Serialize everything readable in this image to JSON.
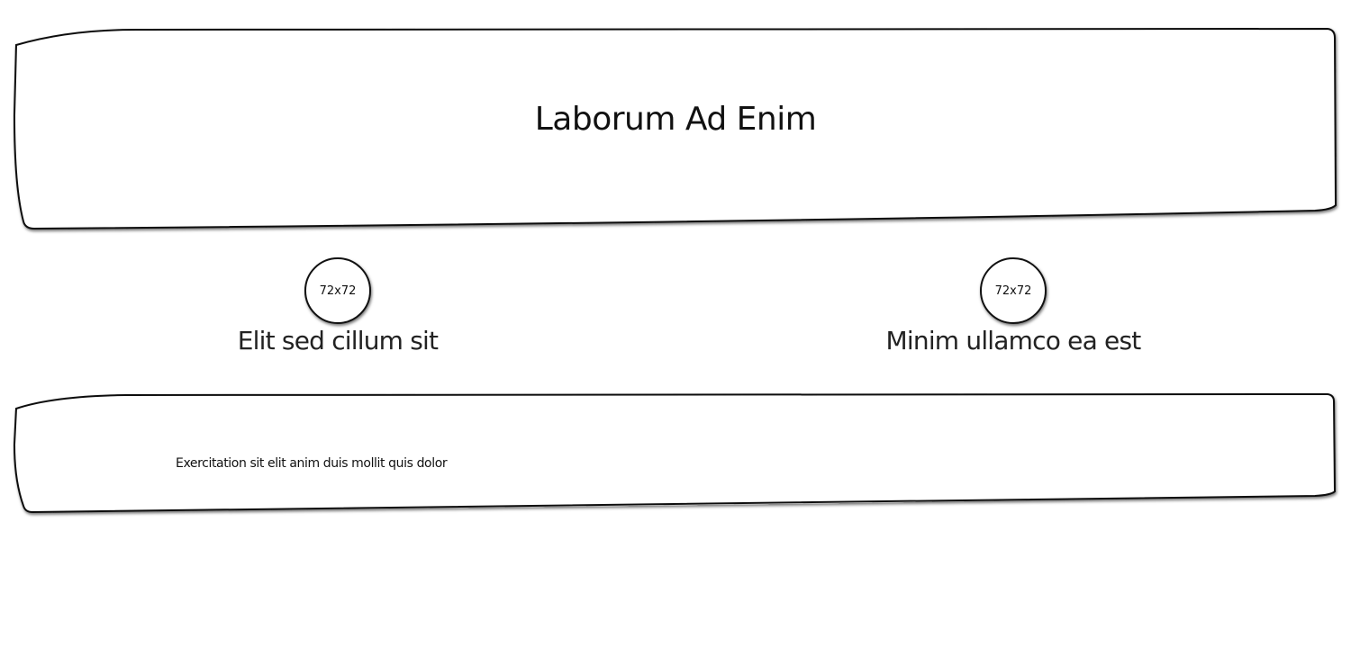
{
  "header": {
    "title": "Laborum Ad Enim"
  },
  "features": [
    {
      "avatar_label": "72x72",
      "title": "Elit sed cillum sit"
    },
    {
      "avatar_label": "72x72",
      "title": "Minim ullamco ea est"
    }
  ],
  "footer": {
    "text": "Exercitation sit elit anim duis mollit quis dolor"
  }
}
